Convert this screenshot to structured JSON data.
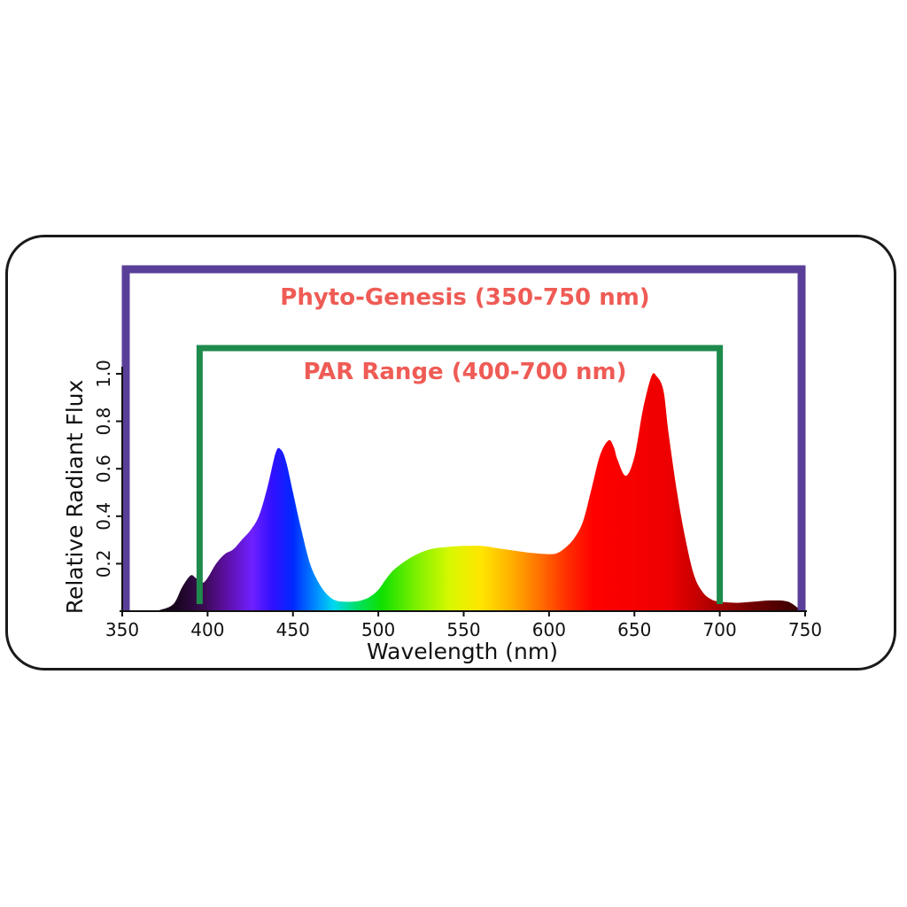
{
  "chart_data": {
    "type": "area",
    "xlabel": "Wavelength (nm)",
    "ylabel": "Relative Radiant Flux",
    "xlim": [
      350,
      750
    ],
    "ylim": [
      0,
      1.0
    ],
    "x_ticks": [
      "350",
      "400",
      "450",
      "500",
      "550",
      "600",
      "650",
      "700",
      "750"
    ],
    "y_ticks": [
      "0.2",
      "0.4",
      "0.6",
      "0.8",
      "1.0"
    ],
    "grid": false,
    "legend": "none",
    "spectrum": {
      "x": [
        365,
        372,
        380,
        385,
        390,
        393,
        397,
        400,
        405,
        410,
        415,
        420,
        425,
        430,
        435,
        440,
        443,
        446,
        450,
        455,
        460,
        465,
        470,
        475,
        480,
        485,
        490,
        495,
        500,
        505,
        510,
        520,
        530,
        540,
        550,
        560,
        570,
        580,
        590,
        600,
        605,
        610,
        615,
        620,
        625,
        630,
        635,
        638,
        640,
        645,
        650,
        655,
        660,
        663,
        667,
        670,
        675,
        680,
        685,
        690,
        695,
        700,
        710,
        720,
        730,
        740,
        748
      ],
      "y": [
        0.0,
        0.005,
        0.03,
        0.1,
        0.15,
        0.14,
        0.12,
        0.14,
        0.2,
        0.24,
        0.26,
        0.3,
        0.34,
        0.4,
        0.52,
        0.67,
        0.68,
        0.63,
        0.5,
        0.34,
        0.2,
        0.12,
        0.07,
        0.045,
        0.04,
        0.04,
        0.045,
        0.06,
        0.09,
        0.14,
        0.18,
        0.23,
        0.26,
        0.27,
        0.275,
        0.275,
        0.265,
        0.255,
        0.245,
        0.24,
        0.245,
        0.27,
        0.31,
        0.38,
        0.52,
        0.66,
        0.72,
        0.69,
        0.64,
        0.57,
        0.65,
        0.85,
        0.99,
        0.99,
        0.93,
        0.75,
        0.5,
        0.3,
        0.15,
        0.08,
        0.05,
        0.04,
        0.035,
        0.04,
        0.045,
        0.04,
        0.0
      ]
    },
    "ranges": [
      {
        "label": "Phyto-Genesis (350-750 nm)",
        "start": 350,
        "end": 750,
        "color": "#5a3f99",
        "label_color": "#ef5b55"
      },
      {
        "label": "PAR Range (400-700 nm)",
        "start": 400,
        "end": 700,
        "color": "#1e8a4c",
        "label_color": "#ef5b55"
      }
    ]
  }
}
